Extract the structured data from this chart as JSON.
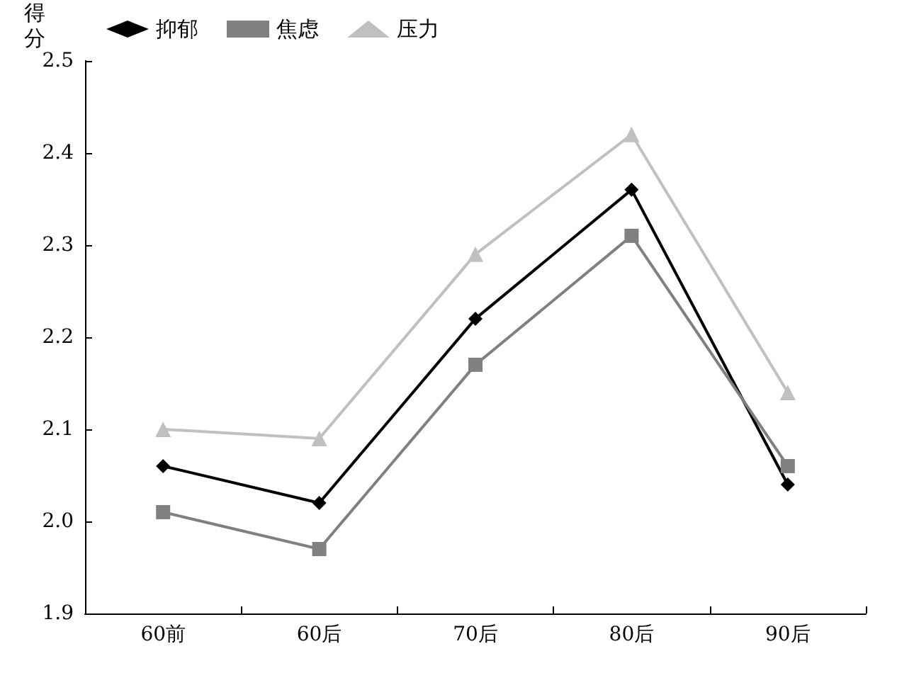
{
  "chart_data": {
    "type": "line",
    "ylabel": "得分",
    "categories": [
      "60前",
      "60后",
      "70后",
      "80后",
      "90后"
    ],
    "series": [
      {
        "name": "抑郁",
        "color": "#000000",
        "marker": "diamond",
        "values": [
          2.06,
          2.02,
          2.22,
          2.36,
          2.04
        ]
      },
      {
        "name": "焦虑",
        "color": "#808080",
        "marker": "square",
        "values": [
          2.01,
          1.97,
          2.17,
          2.31,
          2.06
        ]
      },
      {
        "name": "压力",
        "color": "#c0c0c0",
        "marker": "triangle",
        "values": [
          2.1,
          2.09,
          2.29,
          2.42,
          2.14
        ]
      }
    ],
    "ylim": [
      1.9,
      2.5
    ],
    "yticks": [
      1.9,
      {
        "value": 2,
        "label": "2.0"
      },
      2.1,
      2.2,
      2.3,
      2.4,
      2.5
    ],
    "grid": false,
    "legend": "top left",
    "line_style": "solid"
  }
}
